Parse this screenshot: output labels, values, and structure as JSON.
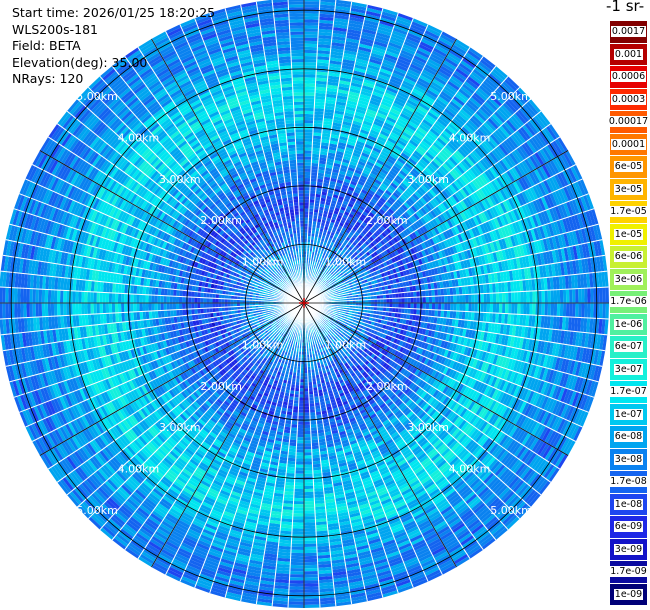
{
  "header": {
    "start_time": "Start time: 2026/01/25 18:20:25",
    "instrument": "WLS200s-181",
    "field": "Field: BETA",
    "elevation": "Elevation(deg): 35.00",
    "nrays": "NRays: 120"
  },
  "colorbar": {
    "unit_label": "-1 sr-",
    "levels": [
      {
        "label": "0.0017",
        "color": "#820000"
      },
      {
        "label": "0.001",
        "color": "#b40000"
      },
      {
        "label": "0.0006",
        "color": "#e60000"
      },
      {
        "label": "0.0003",
        "color": "#ff2a00"
      },
      {
        "label": "0.00017",
        "color": "#ff5a00"
      },
      {
        "label": "0.0001",
        "color": "#ff7800"
      },
      {
        "label": "6e-05",
        "color": "#ff9600"
      },
      {
        "label": "3e-05",
        "color": "#ffb400"
      },
      {
        "label": "1.7e-05",
        "color": "#ffd200"
      },
      {
        "label": "1e-05",
        "color": "#f0f000"
      },
      {
        "label": "6e-06",
        "color": "#c8f032"
      },
      {
        "label": "3e-06",
        "color": "#a0f05a"
      },
      {
        "label": "1.7e-06",
        "color": "#78f078"
      },
      {
        "label": "1e-06",
        "color": "#50f0a0"
      },
      {
        "label": "6e-07",
        "color": "#28f0c8"
      },
      {
        "label": "3e-07",
        "color": "#14f0dc"
      },
      {
        "label": "1.7e-07",
        "color": "#00e6f0"
      },
      {
        "label": "1e-07",
        "color": "#00c8f0"
      },
      {
        "label": "6e-08",
        "color": "#00a5f0"
      },
      {
        "label": "3e-08",
        "color": "#0a82f0"
      },
      {
        "label": "1.7e-08",
        "color": "#1464f0"
      },
      {
        "label": "1e-08",
        "color": "#1e46f0"
      },
      {
        "label": "6e-09",
        "color": "#1e28e6"
      },
      {
        "label": "3e-09",
        "color": "#1414c8"
      },
      {
        "label": "1.7e-09",
        "color": "#0a0aa0"
      },
      {
        "label": "1e-09",
        "color": "#000078"
      }
    ]
  },
  "chart_data": {
    "type": "heatmap",
    "projection": "polar PPI (plan position indicator)",
    "nrays": 120,
    "range_rings_km": [
      1,
      2,
      3,
      4,
      5
    ],
    "ring_label_km": [
      "1.00km",
      "2.00km",
      "3.00km",
      "4.00km",
      "5.00km"
    ],
    "max_range_km": 5.0,
    "radial_spokes": 12,
    "profile": {
      "range_km": [
        0.0,
        0.5,
        1.0,
        1.5,
        2.0,
        2.5,
        3.0,
        3.5,
        4.0,
        4.5,
        5.0
      ],
      "beta_sr_inv_m_inv": [
        3e-08,
        6e-08,
        3e-08,
        1e-08,
        1.7e-08,
        6e-08,
        1e-07,
        1.7e-07,
        6e-08,
        3e-08,
        3e-08
      ]
    }
  }
}
